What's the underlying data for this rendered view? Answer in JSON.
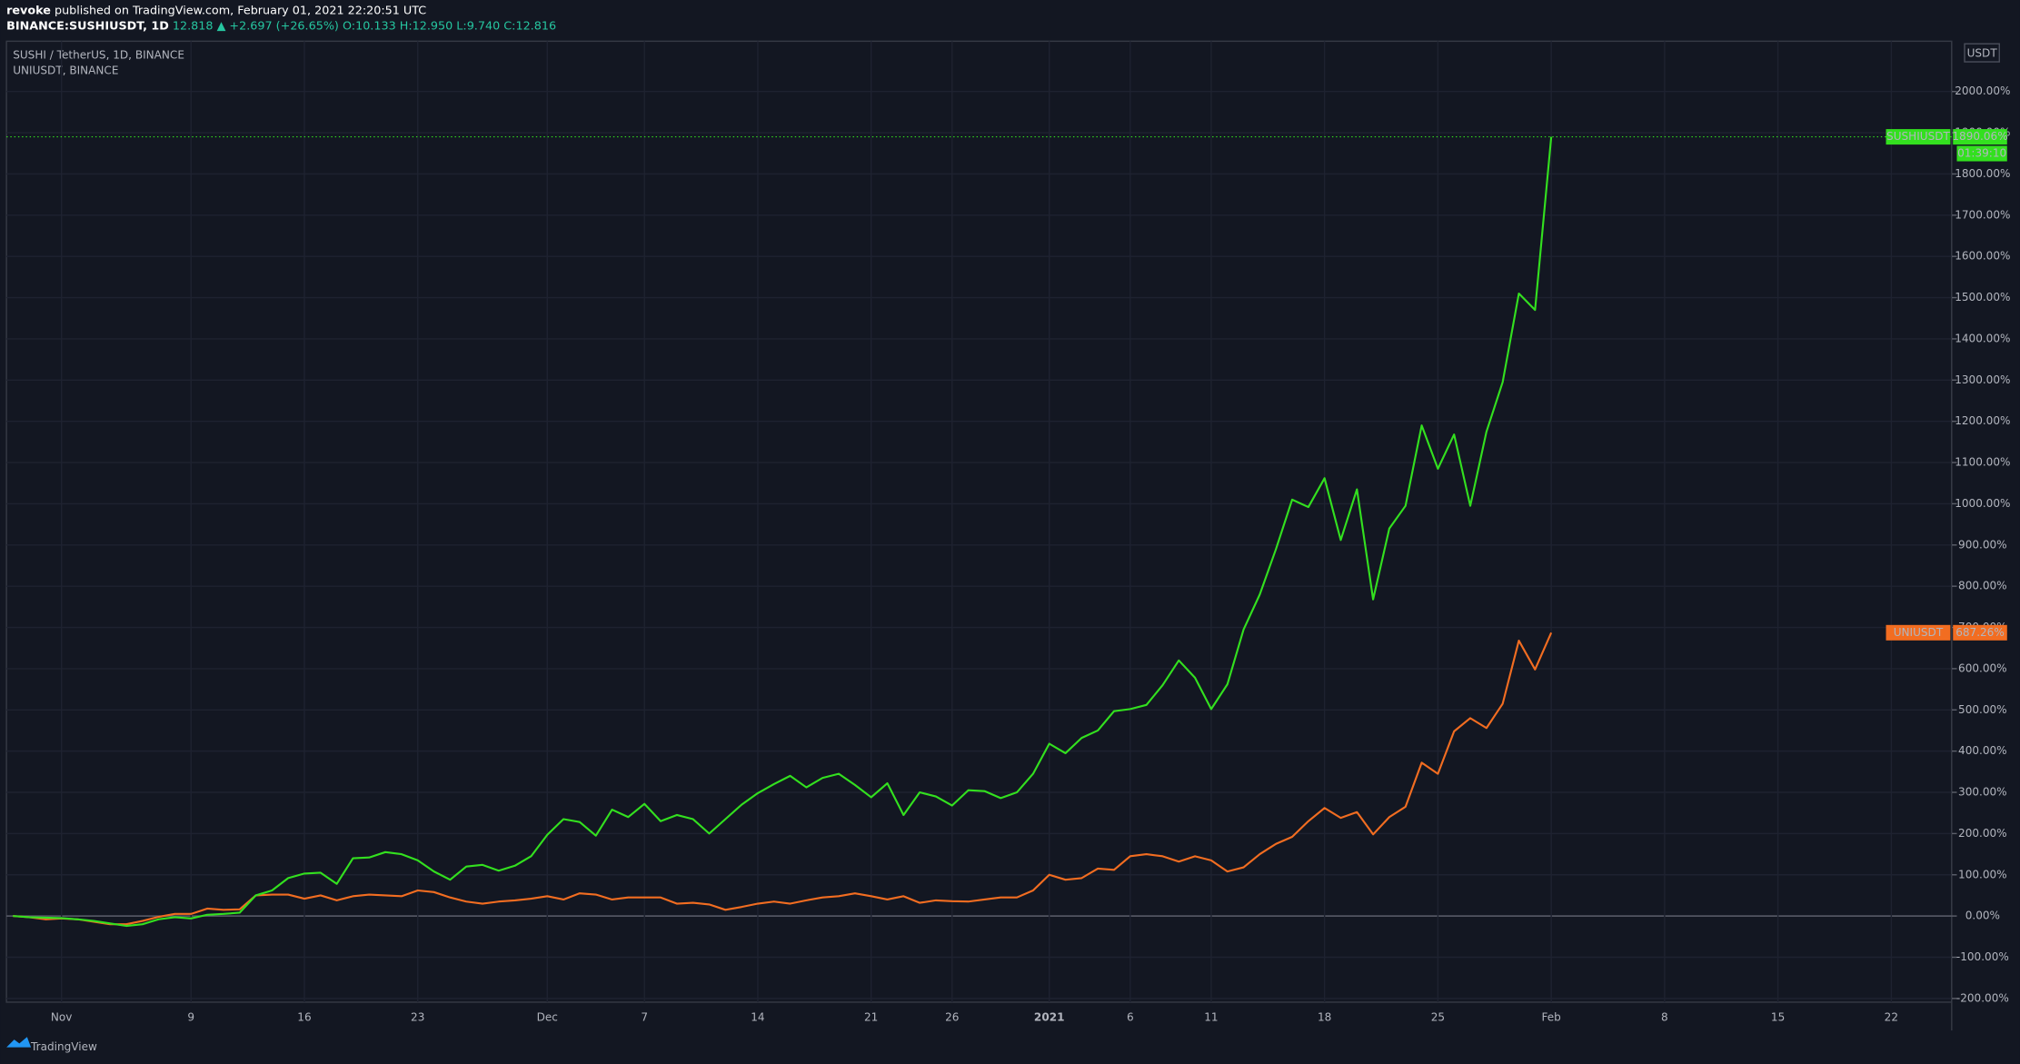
{
  "header": {
    "user": "revoke",
    "text": "published on TradingView.com, February 01, 2021 22:20:51 UTC",
    "symbol": "BINANCE:SUSHIUSDT, 1D",
    "change": "12.818 ▲ +2.697 (+26.65%)",
    "ohlc": "O:10.133 H:12.950 L:9.740 C:12.816"
  },
  "footer": {
    "brand": "TradingView"
  },
  "chart_data": {
    "type": "line",
    "title": "SUSHI / TetherUS, 1D, BINANCE",
    "subtitle": "UNIUSDT, BINANCE",
    "currency": "USDT",
    "countdown": "01:39:10",
    "grid": true,
    "ylim": [
      -209,
      2122
    ],
    "yticks": [
      {
        "value": -200,
        "label": "-200.00%"
      },
      {
        "value": -100,
        "label": "-100.00%"
      },
      {
        "value": 0,
        "label": "0.00%"
      },
      {
        "value": 100,
        "label": "100.00%"
      },
      {
        "value": 200,
        "label": "200.00%"
      },
      {
        "value": 300,
        "label": "300.00%"
      },
      {
        "value": 400,
        "label": "400.00%"
      },
      {
        "value": 500,
        "label": "500.00%"
      },
      {
        "value": 600,
        "label": "600.00%"
      },
      {
        "value": 700,
        "label": "700.00%"
      },
      {
        "value": 800,
        "label": "800.00%"
      },
      {
        "value": 900,
        "label": "900.00%"
      },
      {
        "value": 1000,
        "label": "1000.00%"
      },
      {
        "value": 1100,
        "label": "1100.00%"
      },
      {
        "value": 1200,
        "label": "1200.00%"
      },
      {
        "value": 1300,
        "label": "1300.00%"
      },
      {
        "value": 1400,
        "label": "1400.00%"
      },
      {
        "value": 1500,
        "label": "1500.00%"
      },
      {
        "value": 1600,
        "label": "1600.00%"
      },
      {
        "value": 1700,
        "label": "1700.00%"
      },
      {
        "value": 1800,
        "label": "1800.00%"
      },
      {
        "value": 1900,
        "label": "1900.00%"
      },
      {
        "value": 2000,
        "label": "2000.00%"
      }
    ],
    "categories": [
      null,
      null,
      null,
      "Nov",
      null,
      null,
      null,
      null,
      null,
      null,
      null,
      "9",
      null,
      null,
      null,
      null,
      null,
      null,
      "16",
      null,
      null,
      null,
      null,
      null,
      null,
      "23",
      null,
      null,
      null,
      null,
      null,
      null,
      null,
      "Dec",
      null,
      null,
      null,
      null,
      null,
      "7",
      null,
      null,
      null,
      null,
      null,
      null,
      "14",
      null,
      null,
      null,
      null,
      null,
      null,
      "21",
      null,
      null,
      null,
      null,
      "26",
      null,
      null,
      null,
      null,
      null,
      "2021",
      null,
      null,
      null,
      null,
      "6",
      null,
      null,
      null,
      null,
      "11",
      null,
      null,
      null,
      null,
      null,
      null,
      "18",
      null,
      null,
      null,
      null,
      null,
      null,
      "25",
      null,
      null,
      null,
      null,
      null,
      null,
      "Feb",
      null,
      null,
      null,
      null,
      null,
      null,
      "8",
      null,
      null,
      null,
      null,
      null,
      null,
      "15",
      null,
      null,
      null,
      null,
      null,
      null,
      "22",
      null,
      null,
      null
    ],
    "series": [
      {
        "name": "SUSHIUSDT",
        "color": "#33e01f",
        "values": [
          0,
          -3,
          -4,
          -5,
          -8,
          -12,
          -18,
          -24,
          -20,
          -8,
          -3,
          -6,
          3,
          5,
          8,
          50,
          62,
          92,
          103,
          105,
          78,
          140,
          142,
          155,
          150,
          135,
          108,
          88,
          120,
          124,
          110,
          122,
          145,
          197,
          235,
          228,
          195,
          258,
          240,
          272,
          230,
          245,
          235,
          200,
          235,
          270,
          298,
          320,
          340,
          312,
          335,
          345,
          318,
          288,
          322,
          245,
          300,
          290,
          268,
          305,
          303,
          286,
          300,
          345,
          418,
          395,
          432,
          450,
          497,
          502,
          512,
          560,
          620,
          578,
          502,
          562,
          695,
          780,
          890,
          1010,
          992,
          1062,
          912,
          1035,
          768,
          940,
          995,
          1190,
          1085,
          1168,
          995,
          1175,
          1295,
          1510,
          1470,
          1890.06,
          null,
          null,
          null,
          null,
          null,
          null,
          null,
          null,
          null,
          null,
          null,
          null,
          null,
          null,
          null,
          null,
          null,
          null,
          null,
          null,
          null,
          null,
          null,
          null
        ],
        "value_labels": [
          null,
          null,
          null,
          null,
          null,
          null,
          null,
          null,
          null,
          null,
          null,
          null,
          null,
          null,
          null,
          null,
          null,
          null,
          null,
          null,
          null,
          null,
          null,
          null,
          null,
          null,
          null,
          null,
          null,
          null,
          null,
          null,
          null,
          null,
          null,
          null,
          null,
          null,
          null,
          null,
          null,
          null,
          null,
          null,
          null,
          null,
          null,
          null,
          null,
          null,
          null,
          null,
          null,
          null,
          null,
          null,
          null,
          null,
          null,
          null,
          null,
          null,
          null,
          null,
          null,
          null,
          null,
          null,
          null,
          null,
          null,
          null,
          null,
          null,
          null,
          null,
          null,
          null,
          null,
          null,
          null,
          null,
          null,
          null,
          null,
          null,
          null,
          null,
          null,
          null,
          null,
          null,
          null,
          null,
          null,
          "1890.06%",
          null,
          null,
          null,
          null,
          null,
          null,
          null,
          null,
          null,
          null,
          null,
          null,
          null,
          null,
          null,
          null,
          null,
          null,
          null,
          null,
          null,
          null,
          null,
          null
        ]
      },
      {
        "name": "UNIUSDT",
        "color": "#f26d21",
        "values": [
          0,
          -3,
          -8,
          -6,
          -8,
          -14,
          -20,
          -20,
          -12,
          -2,
          5,
          5,
          18,
          15,
          16,
          50,
          52,
          52,
          42,
          50,
          38,
          48,
          52,
          50,
          48,
          62,
          58,
          45,
          35,
          30,
          35,
          38,
          42,
          48,
          40,
          55,
          52,
          40,
          45,
          45,
          45,
          30,
          32,
          28,
          15,
          22,
          30,
          35,
          30,
          38,
          45,
          48,
          55,
          48,
          40,
          48,
          32,
          38,
          36,
          35,
          40,
          45,
          45,
          62,
          100,
          88,
          92,
          115,
          112,
          145,
          150,
          145,
          132,
          145,
          135,
          108,
          118,
          150,
          175,
          192,
          230,
          262,
          238,
          252,
          198,
          240,
          265,
          372,
          345,
          448,
          480,
          456,
          515,
          668,
          598,
          687.26,
          null,
          null,
          null,
          null,
          null,
          null,
          null,
          null,
          null,
          null,
          null,
          null,
          null,
          null,
          null,
          null,
          null,
          null,
          null,
          null,
          null,
          null,
          null,
          null
        ],
        "value_labels": [
          null,
          null,
          null,
          null,
          null,
          null,
          null,
          null,
          null,
          null,
          null,
          null,
          null,
          null,
          null,
          null,
          null,
          null,
          null,
          null,
          null,
          null,
          null,
          null,
          null,
          null,
          null,
          null,
          null,
          null,
          null,
          null,
          null,
          null,
          null,
          null,
          null,
          null,
          null,
          null,
          null,
          null,
          null,
          null,
          null,
          null,
          null,
          null,
          null,
          null,
          null,
          null,
          null,
          null,
          null,
          null,
          null,
          null,
          null,
          null,
          null,
          null,
          null,
          null,
          null,
          null,
          null,
          null,
          null,
          null,
          null,
          null,
          null,
          null,
          null,
          null,
          null,
          null,
          null,
          null,
          null,
          null,
          null,
          null,
          null,
          null,
          null,
          null,
          null,
          null,
          null,
          null,
          null,
          null,
          null,
          "687.26%",
          null,
          null,
          null,
          null,
          null,
          null,
          null,
          null,
          null,
          null,
          null,
          null,
          null,
          null,
          null,
          null,
          null,
          null,
          null,
          null,
          null,
          null,
          null,
          null
        ]
      }
    ]
  }
}
